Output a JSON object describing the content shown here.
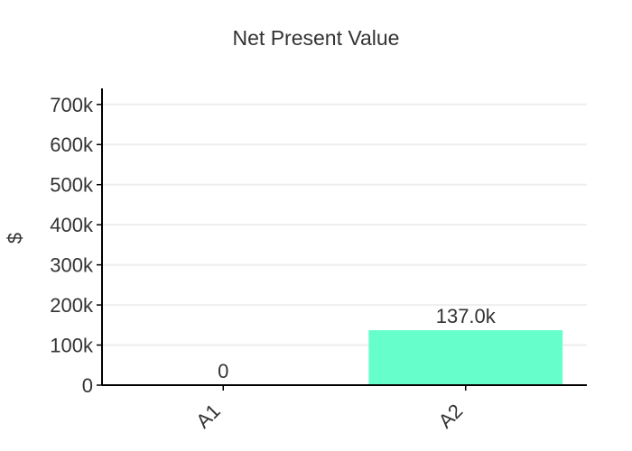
{
  "chart_data": {
    "type": "bar",
    "title": "Net Present Value",
    "xlabel": "",
    "ylabel": "$",
    "categories": [
      "A1",
      "A2"
    ],
    "values": [
      0,
      137000
    ],
    "data_labels": [
      "0",
      "137.0k"
    ],
    "ylim": [
      0,
      740000
    ],
    "yticks": [
      0,
      100000,
      200000,
      300000,
      400000,
      500000,
      600000,
      700000
    ],
    "ytick_labels": [
      "0",
      "100k",
      "200k",
      "300k",
      "400k",
      "500k",
      "600k",
      "700k"
    ],
    "grid": true,
    "bar_color": "#66ffcc",
    "axis_color": "#000000",
    "grid_color": "#eeeeee"
  }
}
